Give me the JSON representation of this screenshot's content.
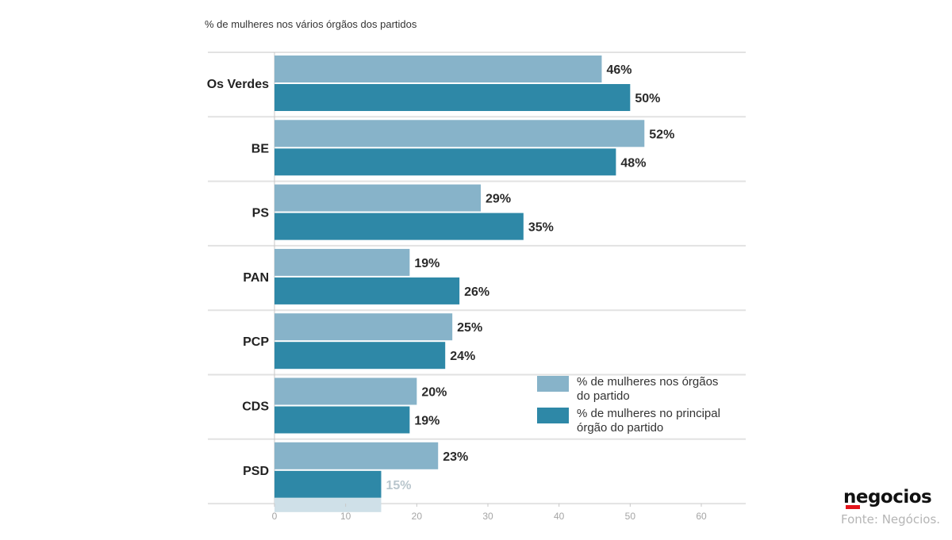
{
  "chart_data": {
    "type": "bar",
    "title": "% de mulheres nos vários órgãos dos partidos",
    "categories": [
      "Os Verdes",
      "BE",
      "PS",
      "PAN",
      "PCP",
      "CDS",
      "PSD"
    ],
    "series": [
      {
        "name": "% de mulheres nos órgãos do partido",
        "values": [
          46,
          52,
          29,
          19,
          25,
          20,
          23
        ],
        "color": "#87b3c9"
      },
      {
        "name": "% de mulheres no principal órgão do partido",
        "values": [
          50,
          48,
          35,
          26,
          24,
          19,
          15
        ],
        "color": "#2e88a7"
      }
    ],
    "data_labels": [
      [
        "46%",
        "52%",
        "29%",
        "19%",
        "25%",
        "20%",
        "23%"
      ],
      [
        "50%",
        "48%",
        "35%",
        "26%",
        "24%",
        "19%",
        "15%"
      ]
    ],
    "xlim": [
      0,
      60
    ],
    "xticks": [
      "0",
      "10",
      "20",
      "30",
      "40",
      "50",
      "60"
    ],
    "legend": {
      "position": "bottom-right",
      "entries": [
        [
          "% de mulheres nos órgãos",
          "do partido"
        ],
        [
          "% de mulheres no principal",
          "órgão do partido"
        ]
      ]
    },
    "grid": false
  },
  "branding": {
    "logo_text": "negocios",
    "source": "Fonte: Negócios."
  }
}
